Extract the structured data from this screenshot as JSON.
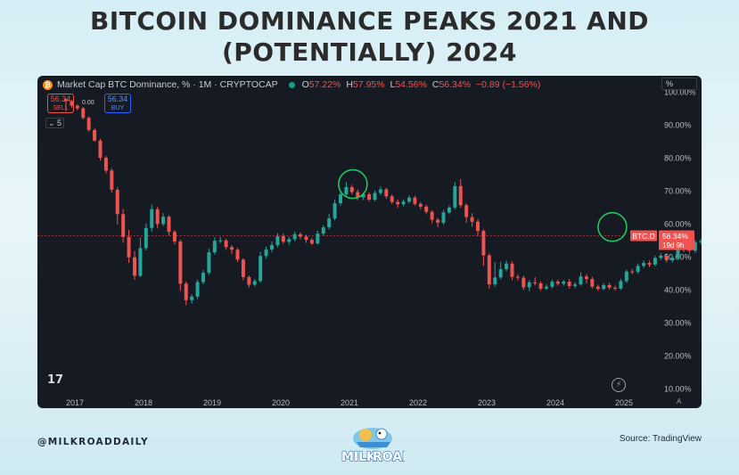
{
  "page": {
    "title_line1": "BITCOIN DOMINANCE PEAKS 2021 AND",
    "title_line2": "(POTENTIALLY) 2024",
    "handle": "@MILKROADDAILY",
    "source": "Source: TradingView",
    "logo_text_a": "MILK",
    "logo_text_b": "ROAD"
  },
  "header": {
    "btc_icon": "bitcoin-icon",
    "symbol_text": "Market Cap BTC Dominance, % · 1M · CRYPTOCAP",
    "ohlc": {
      "o_label": "O",
      "o": "57.22%",
      "h_label": "H",
      "h": "57.95%",
      "l_label": "L",
      "l": "54.56%",
      "c_label": "C",
      "c": "56.34%",
      "chg": "−0.89 (−1.56%)"
    },
    "scale_mode": "%"
  },
  "trade": {
    "sell_price": "56.34",
    "sell_label": "SELL",
    "buy_price": "56.34",
    "buy_label": "BUY",
    "spread": "0.00",
    "interval_chip": "5"
  },
  "price_tag": {
    "symbol": "BTC.D",
    "value": "56.34%",
    "countdown": "19d 9h"
  },
  "misc": {
    "tv_logo": "17",
    "auto_scale": "A"
  },
  "colors": {
    "up": "#26a69a",
    "down": "#ef5350",
    "highlight_circle": "#22c55e",
    "panel": "#161a22"
  },
  "chart_data": {
    "type": "candlestick",
    "title": "Market Cap BTC Dominance, % · 1M · CRYPTOCAP",
    "y_ticks": [
      "100.00%",
      "90.00%",
      "80.00%",
      "70.00%",
      "60.00%",
      "50.00%",
      "40.00%",
      "30.00%",
      "20.00%",
      "10.00%"
    ],
    "x_ticks": [
      "2017",
      "2018",
      "2019",
      "2020",
      "2021",
      "2022",
      "2023",
      "2024",
      "2025"
    ],
    "ylim": [
      10,
      100
    ],
    "x_start_year": 2016.87,
    "current_value": 56.34,
    "annotations": [
      {
        "label": "peak-2021",
        "x": 2021.05,
        "y": 72
      },
      {
        "label": "peak-2024",
        "x": 2024.83,
        "y": 59
      }
    ],
    "candles": [
      [
        97.8,
        97.2,
        97.9,
        94.1
      ],
      [
        97.2,
        95.8,
        97.5,
        95.1
      ],
      [
        95.8,
        95.0,
        96.2,
        94.4
      ],
      [
        95.0,
        92.1,
        95.4,
        91.6
      ],
      [
        92.1,
        88.4,
        92.6,
        87.9
      ],
      [
        88.4,
        85.2,
        89.0,
        84.8
      ],
      [
        85.2,
        80.0,
        85.7,
        79.1
      ],
      [
        80.0,
        76.1,
        80.6,
        75.2
      ],
      [
        76.1,
        70.3,
        76.8,
        69.4
      ],
      [
        70.3,
        62.9,
        71.1,
        59.8
      ],
      [
        62.9,
        56.0,
        64.5,
        54.2
      ],
      [
        56.0,
        49.8,
        58.1,
        48.1
      ],
      [
        49.8,
        44.2,
        51.7,
        43.0
      ],
      [
        44.2,
        52.6,
        55.8,
        43.8
      ],
      [
        52.6,
        58.7,
        60.1,
        51.9
      ],
      [
        58.7,
        64.4,
        65.8,
        57.6
      ],
      [
        64.4,
        59.9,
        65.1,
        58.6
      ],
      [
        59.9,
        62.1,
        63.2,
        59.3
      ],
      [
        62.1,
        57.5,
        62.6,
        56.4
      ],
      [
        57.5,
        54.6,
        58.1,
        53.7
      ],
      [
        54.6,
        41.8,
        55.2,
        39.6
      ],
      [
        41.8,
        36.8,
        42.4,
        35.3
      ],
      [
        36.8,
        37.9,
        38.6,
        35.8
      ],
      [
        37.9,
        42.3,
        43.1,
        37.1
      ],
      [
        42.3,
        45.1,
        46.0,
        41.6
      ],
      [
        45.1,
        51.3,
        52.4,
        44.5
      ],
      [
        51.3,
        54.8,
        55.9,
        50.6
      ],
      [
        54.8,
        54.9,
        56.0,
        54.1
      ],
      [
        54.9,
        52.9,
        55.5,
        52.1
      ],
      [
        52.9,
        52.1,
        53.5,
        50.8
      ],
      [
        52.1,
        49.1,
        52.6,
        48.4
      ],
      [
        49.1,
        43.8,
        49.5,
        42.9
      ],
      [
        43.8,
        41.5,
        44.3,
        40.6
      ],
      [
        41.5,
        42.6,
        43.2,
        40.9
      ],
      [
        42.6,
        50.2,
        51.5,
        42.1
      ],
      [
        50.2,
        52.2,
        53.1,
        49.4
      ],
      [
        52.2,
        53.5,
        54.6,
        51.3
      ],
      [
        53.5,
        56.2,
        57.1,
        52.8
      ],
      [
        56.2,
        54.5,
        57.0,
        53.9
      ],
      [
        54.5,
        55.3,
        56.0,
        53.6
      ],
      [
        55.3,
        56.8,
        57.6,
        54.7
      ],
      [
        56.8,
        56.1,
        57.4,
        55.3
      ],
      [
        56.1,
        55.1,
        56.6,
        54.2
      ],
      [
        55.1,
        54.0,
        55.7,
        53.5
      ],
      [
        54.0,
        57.0,
        57.9,
        53.6
      ],
      [
        57.0,
        58.9,
        59.6,
        56.4
      ],
      [
        58.9,
        61.6,
        63.0,
        58.2
      ],
      [
        61.6,
        66.2,
        67.4,
        61.0
      ],
      [
        66.2,
        68.9,
        70.2,
        65.5
      ],
      [
        68.9,
        71.1,
        72.6,
        68.2
      ],
      [
        71.1,
        69.6,
        71.8,
        68.9
      ],
      [
        69.6,
        68.0,
        70.4,
        67.2
      ],
      [
        68.0,
        68.9,
        69.5,
        67.1
      ],
      [
        68.9,
        67.3,
        69.5,
        66.7
      ],
      [
        67.3,
        69.3,
        70.0,
        66.8
      ],
      [
        69.3,
        70.4,
        71.3,
        68.7
      ],
      [
        70.4,
        68.3,
        70.9,
        67.5
      ],
      [
        68.3,
        66.6,
        68.9,
        66.0
      ],
      [
        66.6,
        65.9,
        67.3,
        64.8
      ],
      [
        65.9,
        66.7,
        67.4,
        65.3
      ],
      [
        66.7,
        67.9,
        68.6,
        66.1
      ],
      [
        67.9,
        66.0,
        68.5,
        65.4
      ],
      [
        66.0,
        65.2,
        66.6,
        64.4
      ],
      [
        65.2,
        63.6,
        65.8,
        62.9
      ],
      [
        63.6,
        61.2,
        64.1,
        60.1
      ],
      [
        61.2,
        60.3,
        61.8,
        58.9
      ],
      [
        60.3,
        63.4,
        64.2,
        59.7
      ],
      [
        63.4,
        64.9,
        65.5,
        62.8
      ],
      [
        64.9,
        71.4,
        72.6,
        64.3
      ],
      [
        71.4,
        65.6,
        73.5,
        64.8
      ],
      [
        65.6,
        62.0,
        66.2,
        60.3
      ],
      [
        62.0,
        60.6,
        63.2,
        59.1
      ],
      [
        60.6,
        57.8,
        61.4,
        56.3
      ],
      [
        57.8,
        50.4,
        58.3,
        47.2
      ],
      [
        50.4,
        41.6,
        51.0,
        40.3
      ],
      [
        41.6,
        43.7,
        48.3,
        40.9
      ],
      [
        43.7,
        46.2,
        48.5,
        43.1
      ],
      [
        46.2,
        47.9,
        48.8,
        45.5
      ],
      [
        47.9,
        43.9,
        48.6,
        42.9
      ],
      [
        43.9,
        43.6,
        44.6,
        42.8
      ],
      [
        43.6,
        40.7,
        44.3,
        39.9
      ],
      [
        40.7,
        42.2,
        42.9,
        39.5
      ],
      [
        42.2,
        41.9,
        43.8,
        41.3
      ],
      [
        41.9,
        40.3,
        42.5,
        39.6
      ],
      [
        40.3,
        40.9,
        41.6,
        39.9
      ],
      [
        40.9,
        42.4,
        43.1,
        40.3
      ],
      [
        42.4,
        41.8,
        43.0,
        41.2
      ],
      [
        41.8,
        42.4,
        43.0,
        41.2
      ],
      [
        42.4,
        41.1,
        43.2,
        40.3
      ],
      [
        41.1,
        41.6,
        42.3,
        40.5
      ],
      [
        41.6,
        44.0,
        45.3,
        41.2
      ],
      [
        44.0,
        43.2,
        44.7,
        41.9
      ],
      [
        43.2,
        40.9,
        43.9,
        40.3
      ],
      [
        40.9,
        40.2,
        41.5,
        39.6
      ],
      [
        40.2,
        41.4,
        42.0,
        39.8
      ],
      [
        41.4,
        40.6,
        42.1,
        40.0
      ],
      [
        40.6,
        40.3,
        41.2,
        39.7
      ],
      [
        40.3,
        42.6,
        43.3,
        39.9
      ],
      [
        42.6,
        45.5,
        46.0,
        42.1
      ],
      [
        45.5,
        45.4,
        46.3,
        44.7
      ],
      [
        45.4,
        47.2,
        47.9,
        44.8
      ],
      [
        47.2,
        48.1,
        48.9,
        46.6
      ],
      [
        48.1,
        47.6,
        48.8,
        46.9
      ],
      [
        47.6,
        49.6,
        50.3,
        47.1
      ],
      [
        49.6,
        50.3,
        51.1,
        48.9
      ],
      [
        50.3,
        48.9,
        51.0,
        48.2
      ],
      [
        48.9,
        49.7,
        50.5,
        48.2
      ],
      [
        49.7,
        53.2,
        53.9,
        49.1
      ],
      [
        53.2,
        52.1,
        53.8,
        51.4
      ],
      [
        52.1,
        51.8,
        52.7,
        51.0
      ],
      [
        51.8,
        54.4,
        55.1,
        51.2
      ],
      [
        54.4,
        54.7,
        55.3,
        53.8
      ],
      [
        54.7,
        54.1,
        55.5,
        53.4
      ],
      [
        54.1,
        55.8,
        56.5,
        53.7
      ],
      [
        55.8,
        55.1,
        56.4,
        54.6
      ],
      [
        55.1,
        55.9,
        56.5,
        54.6
      ],
      [
        55.9,
        56.6,
        57.2,
        55.3
      ],
      [
        56.6,
        57.4,
        58.0,
        55.9
      ],
      [
        57.4,
        57.2,
        58.1,
        56.6
      ],
      [
        57.2,
        57.8,
        58.6,
        56.9
      ],
      [
        57.8,
        58.0,
        58.4,
        56.7
      ],
      [
        58.0,
        59.6,
        60.3,
        57.3
      ],
      [
        59.6,
        59.1,
        61.4,
        58.3
      ],
      [
        59.1,
        57.2,
        61.7,
        56.6
      ],
      [
        57.2,
        56.34,
        57.95,
        54.56
      ]
    ]
  }
}
